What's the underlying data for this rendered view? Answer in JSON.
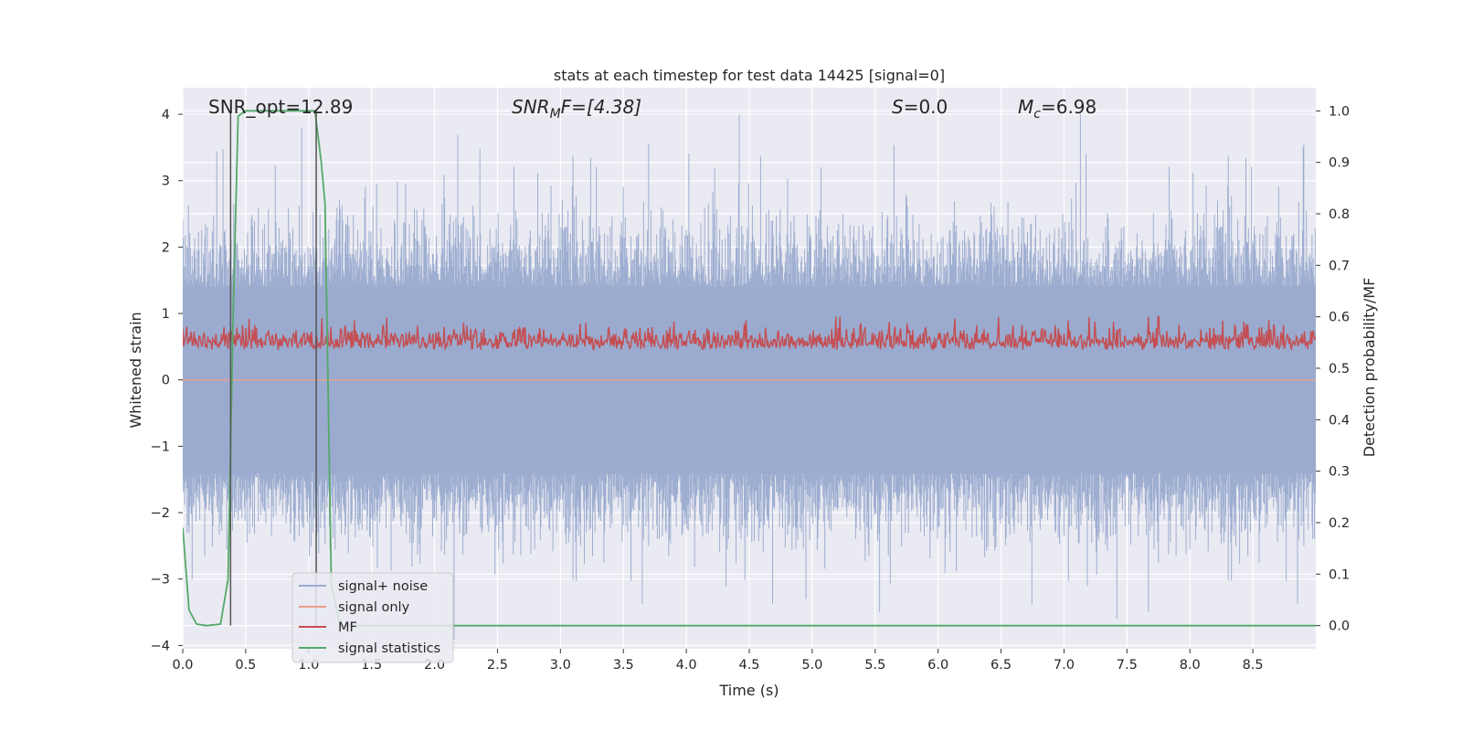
{
  "chart_data": {
    "type": "line",
    "title": "stats at each timestep for test data 14425 [signal=0]",
    "xlabel": "Time (s)",
    "ylabel_left": "Whitened strain",
    "ylabel_right": "Detection probability/MF",
    "xlim": [
      0.0,
      9.0
    ],
    "ylim_left": [
      -4.05,
      4.4
    ],
    "ylim_right": [
      -0.045,
      1.045
    ],
    "xticks": [
      "0.0",
      "0.5",
      "1.0",
      "1.5",
      "2.0",
      "2.5",
      "3.0",
      "3.5",
      "4.0",
      "4.5",
      "5.0",
      "5.5",
      "6.0",
      "6.5",
      "7.0",
      "7.5",
      "8.0",
      "8.5"
    ],
    "yticks_left": [
      "4",
      "3",
      "2",
      "1",
      "0",
      "−1",
      "−2",
      "−3",
      "−4"
    ],
    "yticks_right": [
      "1.0",
      "0.9",
      "0.8",
      "0.7",
      "0.6",
      "0.5",
      "0.4",
      "0.3",
      "0.2",
      "0.1",
      "0.0"
    ],
    "grid": true,
    "legend_position": "lower-left",
    "annotations": {
      "snr_opt": "SNR_opt=12.89",
      "snr_mf_label": "SNR",
      "snr_mf_sub": "M",
      "snr_mf_rest": "F=[4.38]",
      "s_label": "S",
      "s_rest": "=0.0",
      "mc_label": "M",
      "mc_sub": "c",
      "mc_rest": "=6.98"
    },
    "vlines_x": [
      0.38,
      1.06
    ],
    "series": [
      {
        "name": "signal+ noise",
        "axis": "left",
        "color": "#9aabcf",
        "description": "whitened noise time series, roughly symmetric about 0, envelope approx -1.4..1.4 with spikes to about +4 and -3.6",
        "envelope": [
          -1.4,
          1.4
        ],
        "peaks": [
          [
            4.42,
            4.0
          ],
          [
            7.13,
            4.0
          ],
          [
            8.9,
            3.5
          ],
          [
            7.42,
            -3.6
          ],
          [
            7.67,
            -3.5
          ],
          [
            4.95,
            -3.3
          ]
        ]
      },
      {
        "name": "signal only",
        "axis": "left",
        "color": "#e6a08a",
        "x": [
          0.0,
          9.0
        ],
        "y": [
          0.0,
          0.0
        ]
      },
      {
        "name": "MF",
        "axis": "right",
        "color": "#c44e52",
        "description": "matched-filter output fluctuating between about 0.49 and 0.6",
        "range": [
          0.49,
          0.6
        ],
        "peaks": [
          [
            5.22,
            0.6
          ],
          [
            6.48,
            0.6
          ],
          [
            7.75,
            0.6
          ],
          [
            0.33,
            0.58
          ]
        ]
      },
      {
        "name": "signal statistics",
        "axis": "right",
        "color": "#55a868",
        "x": [
          0.0,
          0.05,
          0.11,
          0.19,
          0.3,
          0.36,
          0.4,
          0.44,
          0.5,
          0.6,
          0.8,
          0.95,
          1.05,
          1.1,
          1.13,
          1.18,
          1.25,
          9.0
        ],
        "y": [
          0.19,
          0.03,
          0.003,
          0.0,
          0.003,
          0.09,
          0.6,
          0.99,
          1.0,
          1.0,
          1.0,
          1.0,
          1.0,
          0.9,
          0.82,
          0.08,
          0.0,
          0.0
        ]
      }
    ]
  }
}
